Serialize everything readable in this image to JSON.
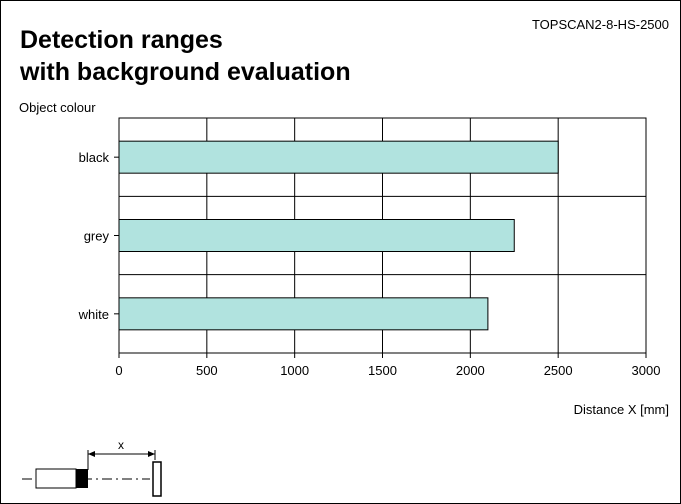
{
  "header": {
    "title_line1": "Detection ranges",
    "title_line2": "with background evaluation",
    "model": "TOPSCAN2-8-HS-2500"
  },
  "sketch": {
    "label": "x"
  },
  "colors": {
    "bar_fill": "#b1e3df",
    "grid": "#000000"
  },
  "chart_data": {
    "type": "bar",
    "orientation": "horizontal",
    "categories": [
      "black",
      "grey",
      "white"
    ],
    "values": [
      2500,
      2250,
      2100
    ],
    "ylabel": "Object colour",
    "xlabel": "Distance X [mm]",
    "xlim": [
      0,
      3000
    ],
    "xticks": [
      0,
      500,
      1000,
      1500,
      2000,
      2500,
      3000
    ],
    "grid": true
  }
}
